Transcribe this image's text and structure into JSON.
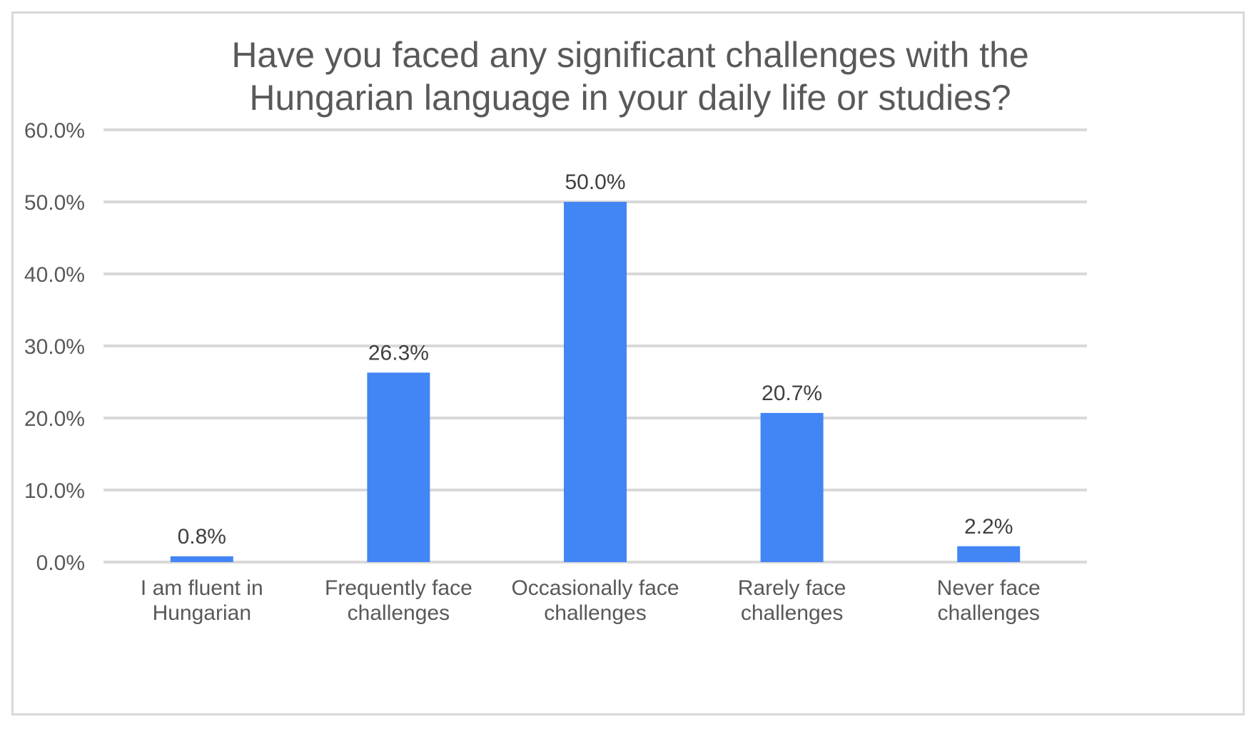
{
  "chart_data": {
    "type": "bar",
    "title": "Have you faced any significant challenges with the\nHungarian language in your daily life or studies?",
    "categories": [
      [
        "I am fluent in",
        "Hungarian"
      ],
      [
        "Frequently face",
        "challenges"
      ],
      [
        "Occasionally face",
        "challenges"
      ],
      [
        "Rarely face",
        "challenges"
      ],
      [
        "Never face",
        "challenges"
      ]
    ],
    "values": [
      0.8,
      26.3,
      50.0,
      20.7,
      2.2
    ],
    "data_labels": [
      "0.8%",
      "26.3%",
      "50.0%",
      "20.7%",
      "2.2%"
    ],
    "y_ticks": [
      0,
      10,
      20,
      30,
      40,
      50,
      60
    ],
    "y_tick_labels": [
      "0.0%",
      "10.0%",
      "20.0%",
      "30.0%",
      "40.0%",
      "50.0%",
      "60.0%"
    ],
    "ylim": [
      0,
      60
    ],
    "xlabel": "",
    "ylabel": "",
    "grid": true,
    "legend": "none",
    "colors": {
      "bar": "#4285f4",
      "grid": "#d9d9d9",
      "text": "#595959",
      "data_label": "#404040",
      "border": "#d9d9d9"
    }
  }
}
